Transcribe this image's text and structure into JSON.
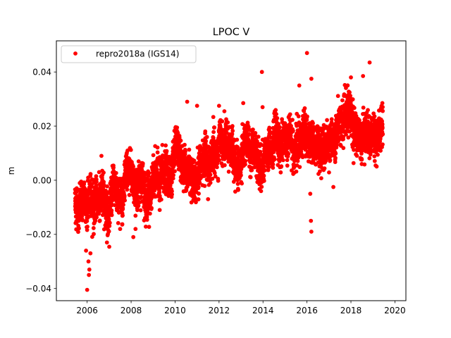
{
  "chart_data": {
    "type": "scatter",
    "title": "LPOC V",
    "xlabel": "",
    "ylabel": "m",
    "xlim": [
      2004.6,
      2020.5
    ],
    "ylim": [
      -0.0445,
      0.0515
    ],
    "xticks": [
      2006,
      2008,
      2010,
      2012,
      2014,
      2016,
      2018,
      2020
    ],
    "xtick_labels": [
      "2006",
      "2008",
      "2010",
      "2012",
      "2014",
      "2016",
      "2018",
      "2020"
    ],
    "yticks": [
      -0.04,
      -0.02,
      0.0,
      0.02,
      0.04
    ],
    "ytick_labels": [
      "−0.04",
      "−0.02",
      "0.00",
      "0.02",
      "0.04"
    ],
    "grid": false,
    "legend_position": "upper-left",
    "series": [
      {
        "name": "repro2018a (IGS14)",
        "color": "#ff0000",
        "marker": "circle",
        "x_start": 2005.45,
        "x_end": 2019.45,
        "n_points": 4700,
        "trend_anchors": [
          [
            2005.45,
            -0.008
          ],
          [
            2006.0,
            -0.0085
          ],
          [
            2007.0,
            -0.006
          ],
          [
            2008.0,
            -0.003
          ],
          [
            2009.0,
            0.0
          ],
          [
            2010.0,
            0.003
          ],
          [
            2011.0,
            0.005
          ],
          [
            2012.0,
            0.007
          ],
          [
            2013.0,
            0.009
          ],
          [
            2014.0,
            0.011
          ],
          [
            2015.0,
            0.013
          ],
          [
            2016.0,
            0.014
          ],
          [
            2017.0,
            0.016
          ],
          [
            2018.0,
            0.018
          ],
          [
            2019.0,
            0.02
          ],
          [
            2019.45,
            0.02
          ]
        ],
        "scatter_sd": 0.0045,
        "outliers": [
          [
            2006.0,
            -0.0405
          ],
          [
            2006.08,
            -0.035
          ],
          [
            2006.1,
            -0.033
          ],
          [
            2006.06,
            -0.03
          ],
          [
            2005.95,
            -0.026
          ],
          [
            2006.15,
            -0.027
          ],
          [
            2006.9,
            -0.023
          ],
          [
            2008.1,
            -0.021
          ],
          [
            2008.2,
            -0.018
          ],
          [
            2013.95,
            0.04
          ],
          [
            2016.0,
            0.047
          ],
          [
            2016.2,
            0.0375
          ],
          [
            2016.18,
            -0.015
          ],
          [
            2016.2,
            -0.019
          ],
          [
            2016.15,
            -0.005
          ],
          [
            2018.85,
            0.0435
          ],
          [
            2018.0,
            0.038
          ],
          [
            2018.55,
            0.0385
          ],
          [
            2010.55,
            0.029
          ],
          [
            2011.0,
            0.0275
          ],
          [
            2012.0,
            0.0275
          ],
          [
            2013.1,
            0.0285
          ],
          [
            2015.65,
            0.035
          ],
          [
            2013.98,
            0.027
          ],
          [
            2006.65,
            0.009
          ],
          [
            2017.2,
            -0.0025
          ],
          [
            2011.5,
            -0.007
          ],
          [
            2009.3,
            -0.011
          ],
          [
            2007.5,
            -0.018
          ]
        ]
      }
    ]
  }
}
